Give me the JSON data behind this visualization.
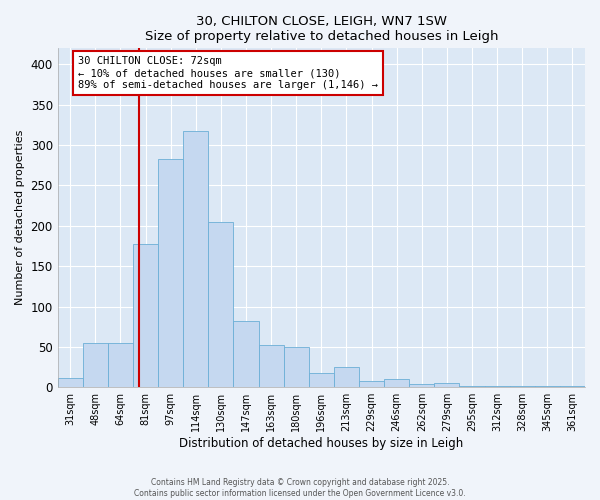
{
  "title": "30, CHILTON CLOSE, LEIGH, WN7 1SW",
  "subtitle": "Size of property relative to detached houses in Leigh",
  "xlabel": "Distribution of detached houses by size in Leigh",
  "ylabel": "Number of detached properties",
  "bar_color": "#c5d8f0",
  "bar_edge_color": "#6baed6",
  "plot_bg_color": "#dce8f5",
  "fig_bg_color": "#f0f4fa",
  "categories": [
    "31sqm",
    "48sqm",
    "64sqm",
    "81sqm",
    "97sqm",
    "114sqm",
    "130sqm",
    "147sqm",
    "163sqm",
    "180sqm",
    "196sqm",
    "213sqm",
    "229sqm",
    "246sqm",
    "262sqm",
    "279sqm",
    "295sqm",
    "312sqm",
    "328sqm",
    "345sqm",
    "361sqm"
  ],
  "values": [
    12,
    55,
    55,
    178,
    283,
    317,
    205,
    82,
    52,
    50,
    17,
    25,
    8,
    10,
    4,
    5,
    2,
    1,
    1,
    1,
    1
  ],
  "ylim": [
    0,
    420
  ],
  "yticks": [
    0,
    50,
    100,
    150,
    200,
    250,
    300,
    350,
    400
  ],
  "red_line_x": 2.72,
  "annotation_title": "30 CHILTON CLOSE: 72sqm",
  "annotation_line1": "← 10% of detached houses are smaller (130)",
  "annotation_line2": "89% of semi-detached houses are larger (1,146) →",
  "annotation_box_facecolor": "#ffffff",
  "annotation_box_edgecolor": "#cc0000",
  "red_line_color": "#cc0000",
  "grid_color": "#ffffff",
  "footer1": "Contains HM Land Registry data © Crown copyright and database right 2025.",
  "footer2": "Contains public sector information licensed under the Open Government Licence v3.0."
}
